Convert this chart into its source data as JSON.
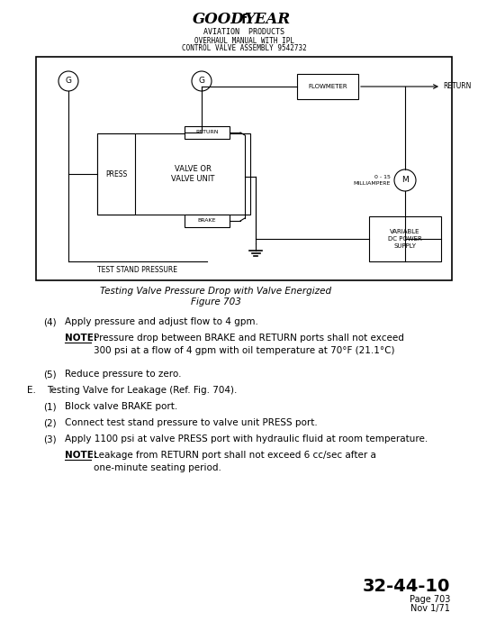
{
  "bg_color": "#ffffff",
  "text_color": "#000000",
  "header_line1": "AVIATION  PRODUCTS",
  "header_line2": "OVERHAUL MANUAL WITH IPL",
  "header_line3": "CONTROL VALVE ASSEMBLY 9542732",
  "caption_line1": "Testing Valve Pressure Drop with Valve Energized",
  "caption_line2": "Figure 703",
  "page_code": "32-44-10",
  "page_num": "Page 703",
  "page_date": "Nov 1/71"
}
